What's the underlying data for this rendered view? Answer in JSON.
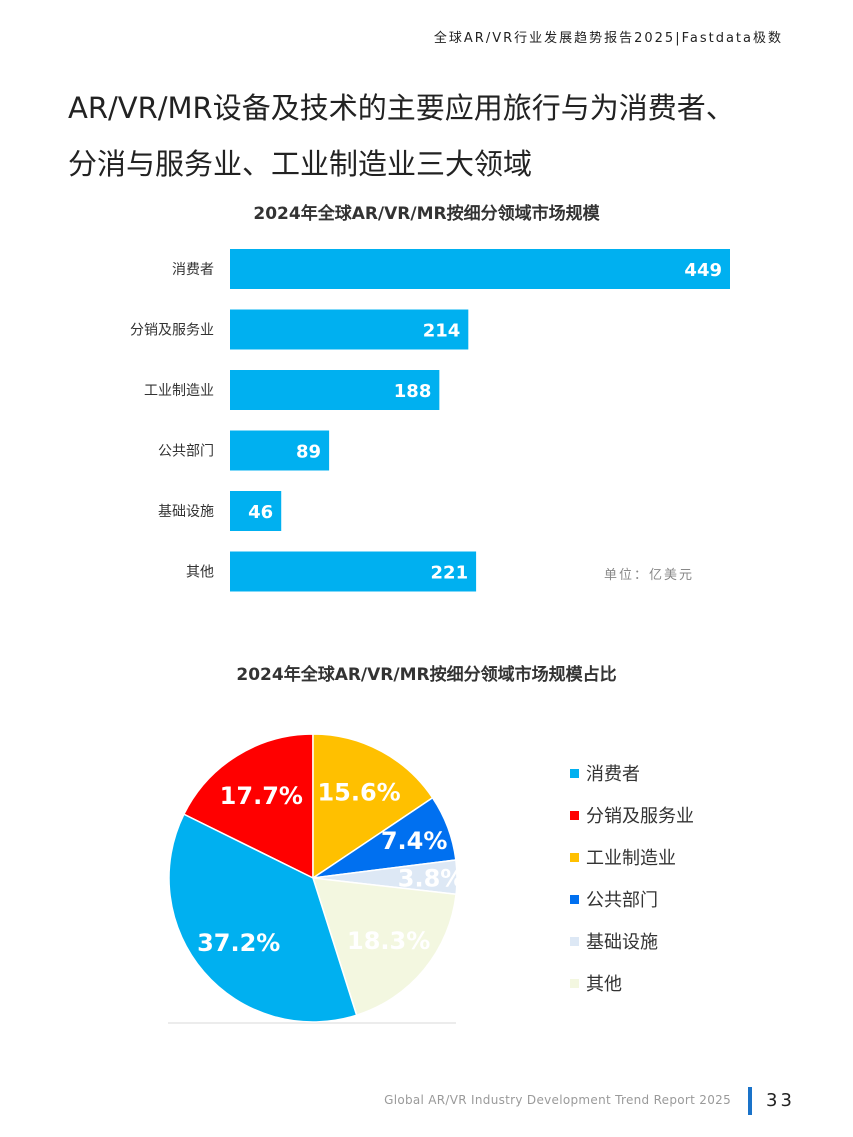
{
  "header": {
    "report_tag": "全球AR/VR行业发展趋势报告2025|Fastdata极数",
    "headline_line1": "AR/VR/MR设备及技术的主要应用旅行与为消费者、",
    "headline_line2": "分消与服务业、工业制造业三大领域"
  },
  "chart_data": [
    {
      "type": "bar",
      "orientation": "horizontal",
      "title": "2024年全球AR/VR/MR按细分领域市场规模",
      "categories": [
        "消费者",
        "分销及服务业",
        "工业制造业",
        "公共部门",
        "基础设施",
        "其他"
      ],
      "values": [
        449,
        214,
        188,
        89,
        46,
        221
      ],
      "unit_note": "单位：亿美元",
      "bar_color": "#00b0f0",
      "xlim": [
        0,
        449
      ],
      "grid": false,
      "legend": "none"
    },
    {
      "type": "pie",
      "title": "2024年全球AR/VR/MR按细分领域市场规模占比",
      "categories": [
        "消费者",
        "分销及服务业",
        "工业制造业",
        "公共部门",
        "基础设施",
        "其他"
      ],
      "values": [
        37.2,
        17.7,
        15.6,
        7.4,
        3.8,
        18.3
      ],
      "value_labels": [
        "37.2%",
        "17.7%",
        "15.6%",
        "7.4%",
        "3.8%",
        "18.3%"
      ],
      "colors": [
        "#00b0f0",
        "#ff0000",
        "#ffc000",
        "#0070f0",
        "#dde8f5",
        "#f3f7e0"
      ],
      "legend": "right"
    }
  ],
  "footer": {
    "report_name_en": "Global AR/VR Industry Development Trend Report 2025",
    "page_number": "33"
  }
}
